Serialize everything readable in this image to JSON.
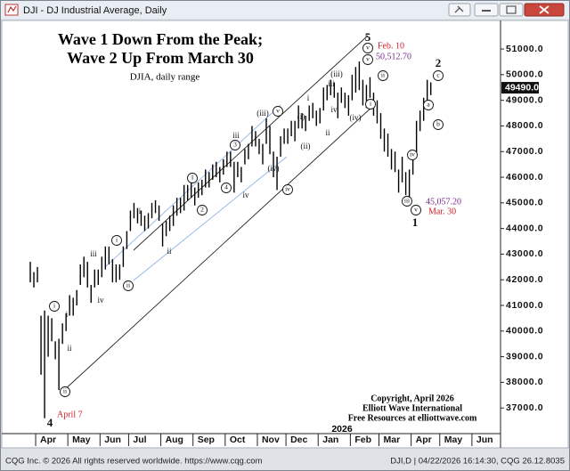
{
  "window": {
    "title": "DJI - DJ Industrial Average, Daily"
  },
  "chart_data": {
    "type": "range_bar",
    "title": [
      "Wave 1 Down From the Peak;",
      "Wave 2 Up From March 30"
    ],
    "subtitle": "DJIA, daily range",
    "categories": [
      null,
      null,
      "Apr",
      null,
      null,
      null,
      null,
      null,
      null,
      null,
      null,
      "May",
      null,
      null,
      null,
      null,
      null,
      null,
      null,
      null,
      "Jun",
      null,
      null,
      null,
      null,
      null,
      null,
      null,
      "Jul",
      null,
      null,
      null,
      null,
      null,
      null,
      null,
      null,
      "Aug",
      null,
      null,
      null,
      null,
      null,
      null,
      null,
      null,
      "Sep",
      null,
      null,
      null,
      null,
      null,
      null,
      null,
      null,
      "Oct",
      null,
      null,
      null,
      null,
      null,
      null,
      null,
      null,
      "Nov",
      null,
      null,
      null,
      null,
      null,
      null,
      null,
      "Dec",
      null,
      null,
      null,
      null,
      null,
      null,
      null,
      null,
      "Jan",
      null,
      null,
      null,
      null,
      null,
      null,
      null,
      null,
      "Feb",
      null,
      null,
      null,
      null,
      null,
      null,
      null,
      "Mar",
      null,
      null,
      null,
      null,
      null,
      null,
      null,
      null,
      "Apr",
      null,
      null,
      null,
      null,
      null,
      null,
      null,
      "May",
      null,
      null,
      null,
      null,
      null,
      null,
      null,
      null,
      "Jun",
      null,
      null,
      null,
      null,
      null,
      null,
      null
    ],
    "year_label": "2026",
    "color": "#000000",
    "high": [
      42700,
      42300,
      42500,
      40600,
      40800,
      40600,
      40500,
      39600,
      39700,
      40300,
      40700,
      41400,
      41300,
      41600,
      42600,
      42900,
      42700,
      41800,
      42400,
      42400,
      42900,
      43300,
      43300,
      42800,
      42600,
      42600,
      43300,
      43900,
      44700,
      45000,
      44800,
      44700,
      44500,
      44600,
      45000,
      45100,
      44900,
      44200,
      44300,
      44500,
      44900,
      45200,
      45200,
      45700,
      45700,
      45800,
      45600,
      45800,
      45900,
      46300,
      46200,
      46500,
      46600,
      46400,
      46700,
      47000,
      47000,
      46600,
      46600,
      46400,
      47100,
      47300,
      48000,
      47800,
      47500,
      47300,
      48300,
      48000,
      47000,
      46800,
      47600,
      47900,
      47900,
      48200,
      48200,
      48800,
      48500,
      48400,
      48800,
      48900,
      48600,
      48700,
      49500,
      49600,
      49800,
      49700,
      49300,
      49500,
      49300,
      49200,
      50000,
      50300,
      50512.7,
      49800,
      49600,
      49900,
      49300,
      49000,
      48500,
      47900,
      47700,
      47100,
      47000,
      46300,
      46800,
      46200,
      46300,
      46800,
      48200,
      48600,
      49100,
      49800,
      49700,
      null,
      null,
      null,
      null,
      null,
      null,
      null,
      null,
      null,
      null,
      null,
      null,
      null,
      null,
      null,
      null,
      null,
      null,
      null
    ],
    "low": [
      41900,
      41700,
      41900,
      38300,
      36600,
      39000,
      39600,
      38900,
      37700,
      39500,
      40000,
      40600,
      40600,
      41000,
      41800,
      42100,
      41700,
      41100,
      41700,
      41800,
      42100,
      42400,
      42600,
      41900,
      41900,
      42000,
      42500,
      43200,
      43900,
      44400,
      44200,
      44100,
      43900,
      44000,
      44400,
      44600,
      44300,
      43300,
      43700,
      43900,
      44100,
      44500,
      44600,
      44700,
      45100,
      45200,
      44900,
      45200,
      45300,
      45600,
      45600,
      45900,
      46000,
      45800,
      46100,
      46400,
      46400,
      45400,
      46000,
      45800,
      46500,
      46700,
      47200,
      47200,
      46900,
      46500,
      47300,
      46900,
      46000,
      45500,
      46800,
      47300,
      47300,
      47600,
      47400,
      47900,
      47900,
      47800,
      48200,
      48300,
      48000,
      48100,
      48600,
      49000,
      49200,
      49100,
      48300,
      48900,
      48700,
      48400,
      49000,
      49300,
      49400,
      48800,
      48700,
      49100,
      48400,
      48100,
      47500,
      47000,
      46800,
      46300,
      46200,
      45400,
      45800,
      45300,
      45057.2,
      46100,
      46900,
      47800,
      48200,
      48800,
      49200,
      null,
      null,
      null,
      null,
      null,
      null,
      null,
      null,
      null,
      null,
      null,
      null,
      null,
      null,
      null,
      null,
      null,
      null,
      null
    ],
    "ylim": [
      36035,
      51940
    ],
    "yticks": [
      {
        "value": 37000,
        "label": "37000.0"
      },
      {
        "value": 38000,
        "label": "38000.0"
      },
      {
        "value": 39000,
        "label": "39000.0"
      },
      {
        "value": 40000,
        "label": "40000.0"
      },
      {
        "value": 41000,
        "label": "41000.0"
      },
      {
        "value": 42000,
        "label": "42000.0"
      },
      {
        "value": 43000,
        "label": "43000.0"
      },
      {
        "value": 44000,
        "label": "44000.0"
      },
      {
        "value": 45000,
        "label": "45000.0"
      },
      {
        "value": 46000,
        "label": "46000.0"
      },
      {
        "value": 47000,
        "label": "47000.0"
      },
      {
        "value": 48000,
        "label": "48000.0"
      },
      {
        "value": 49000,
        "label": "49000.0"
      },
      {
        "value": 50000,
        "label": "50000.0"
      },
      {
        "value": 51000,
        "label": "51000.0"
      }
    ],
    "last_price": {
      "value": 49490,
      "label": "49490.0"
    },
    "annotations": [
      {
        "text": "4",
        "style": "bold"
      },
      {
        "text": "April 7",
        "style": "red"
      },
      {
        "text": "i",
        "style": "circled"
      },
      {
        "text": "ii",
        "style": "circled"
      },
      {
        "text": "i",
        "style": "plain"
      },
      {
        "text": "ii",
        "style": "plain"
      },
      {
        "text": "iii",
        "style": "plain"
      },
      {
        "text": "iv",
        "style": "plain"
      },
      {
        "text": "i",
        "style": "circled"
      },
      {
        "text": "ii",
        "style": "circled"
      },
      {
        "text": "i",
        "style": "plain"
      },
      {
        "text": "ii",
        "style": "plain"
      },
      {
        "text": "1",
        "style": "circled"
      },
      {
        "text": "2",
        "style": "circled"
      },
      {
        "text": "3",
        "style": "circled"
      },
      {
        "text": "4",
        "style": "circled"
      },
      {
        "text": "iii",
        "style": "plain"
      },
      {
        "text": "iv",
        "style": "plain"
      },
      {
        "text": "(iii)",
        "style": "plain"
      },
      {
        "text": "(iv)",
        "style": "plain"
      },
      {
        "text": "v",
        "style": "circled"
      },
      {
        "text": "iv",
        "style": "circled"
      },
      {
        "text": "(i)",
        "style": "plain"
      },
      {
        "text": "(ii)",
        "style": "plain"
      },
      {
        "text": "i",
        "style": "plain"
      },
      {
        "text": "ii",
        "style": "plain"
      },
      {
        "text": "(iii)",
        "style": "plain"
      },
      {
        "text": "iii",
        "style": "plain"
      },
      {
        "text": "iv",
        "style": "plain"
      },
      {
        "text": "(iv)",
        "style": "plain"
      },
      {
        "text": "5",
        "style": "bold"
      },
      {
        "text": "v",
        "style": "circled"
      },
      {
        "text": "v",
        "style": "circled"
      },
      {
        "text": "Feb. 10",
        "style": "red"
      },
      {
        "text": "50,512.70",
        "style": "purple"
      },
      {
        "text": "ii",
        "style": "circled"
      },
      {
        "text": "i",
        "style": "circled"
      },
      {
        "text": "iii",
        "style": "circled"
      },
      {
        "text": "iv",
        "style": "circled"
      },
      {
        "text": "v",
        "style": "circled"
      },
      {
        "text": "1",
        "style": "bold"
      },
      {
        "text": "45,057.20",
        "style": "purple"
      },
      {
        "text": "Mar. 30",
        "style": "red"
      },
      {
        "text": "a",
        "style": "circled"
      },
      {
        "text": "b",
        "style": "circled"
      },
      {
        "text": "2",
        "style": "bold"
      },
      {
        "text": "c",
        "style": "circled"
      }
    ],
    "credits": [
      "Copyright, April 2026",
      "Elliott Wave International",
      "Free Resources at elliottwave.com"
    ]
  },
  "footer": {
    "left": "CQG Inc. © 2026 All rights reserved worldwide. https://www.cqg.com",
    "right": "DJI,D | 04/22/2026 16:14:30, CQG 26.12.8035"
  }
}
